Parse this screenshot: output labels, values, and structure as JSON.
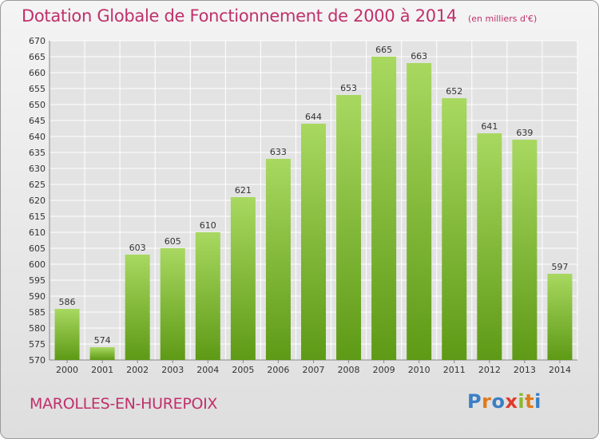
{
  "header": {
    "title": "Dotation Globale de Fonctionnement de 2000 à 2014",
    "unit": "(en milliers d'€)"
  },
  "footer": {
    "commune": "MAROLLES-EN-HUREPOIX",
    "logo": "Proxiti"
  },
  "colors": {
    "title": "#c0306a",
    "bar_top": "#a8d860",
    "bar_bottom": "#5e9a16",
    "grid": "#ffffff",
    "axis_text": "#333333"
  },
  "chart_data": {
    "type": "bar",
    "title": "Dotation Globale de Fonctionnement de 2000 à 2014",
    "subtitle": "(en milliers d'€)",
    "categories": [
      "2000",
      "2001",
      "2002",
      "2003",
      "2004",
      "2005",
      "2006",
      "2007",
      "2008",
      "2009",
      "2010",
      "2011",
      "2012",
      "2013",
      "2014"
    ],
    "values": [
      586,
      574,
      603,
      605,
      610,
      621,
      633,
      644,
      653,
      665,
      663,
      652,
      641,
      639,
      597
    ],
    "ylim": [
      570,
      670
    ],
    "yticks": [
      570,
      575,
      580,
      585,
      590,
      595,
      600,
      605,
      610,
      615,
      620,
      625,
      630,
      635,
      640,
      645,
      650,
      655,
      660,
      665,
      670
    ],
    "grid": true,
    "legend": "none"
  }
}
